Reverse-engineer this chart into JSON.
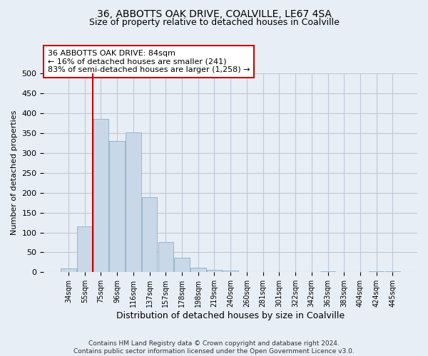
{
  "title1": "36, ABBOTTS OAK DRIVE, COALVILLE, LE67 4SA",
  "title2": "Size of property relative to detached houses in Coalville",
  "xlabel": "Distribution of detached houses by size in Coalville",
  "ylabel": "Number of detached properties",
  "categories": [
    "34sqm",
    "55sqm",
    "75sqm",
    "96sqm",
    "116sqm",
    "137sqm",
    "157sqm",
    "178sqm",
    "198sqm",
    "219sqm",
    "240sqm",
    "260sqm",
    "281sqm",
    "301sqm",
    "322sqm",
    "342sqm",
    "363sqm",
    "383sqm",
    "404sqm",
    "424sqm",
    "445sqm"
  ],
  "values": [
    10,
    115,
    385,
    330,
    352,
    188,
    75,
    37,
    12,
    6,
    5,
    1,
    0,
    0,
    0,
    0,
    3,
    0,
    0,
    2,
    3
  ],
  "bar_color": "#c8d8e8",
  "bar_edge_color": "#9ab4cc",
  "grid_color": "#c0c8d8",
  "bg_color": "#e8eef5",
  "red_line_bin": 2,
  "annotation_text": "36 ABBOTTS OAK DRIVE: 84sqm\n← 16% of detached houses are smaller (241)\n83% of semi-detached houses are larger (1,258) →",
  "annotation_box_color": "#ffffff",
  "annotation_border_color": "#cc0000",
  "footnote1": "Contains HM Land Registry data © Crown copyright and database right 2024.",
  "footnote2": "Contains public sector information licensed under the Open Government Licence v3.0.",
  "ylim": [
    0,
    500
  ],
  "yticks": [
    0,
    50,
    100,
    150,
    200,
    250,
    300,
    350,
    400,
    450,
    500
  ]
}
